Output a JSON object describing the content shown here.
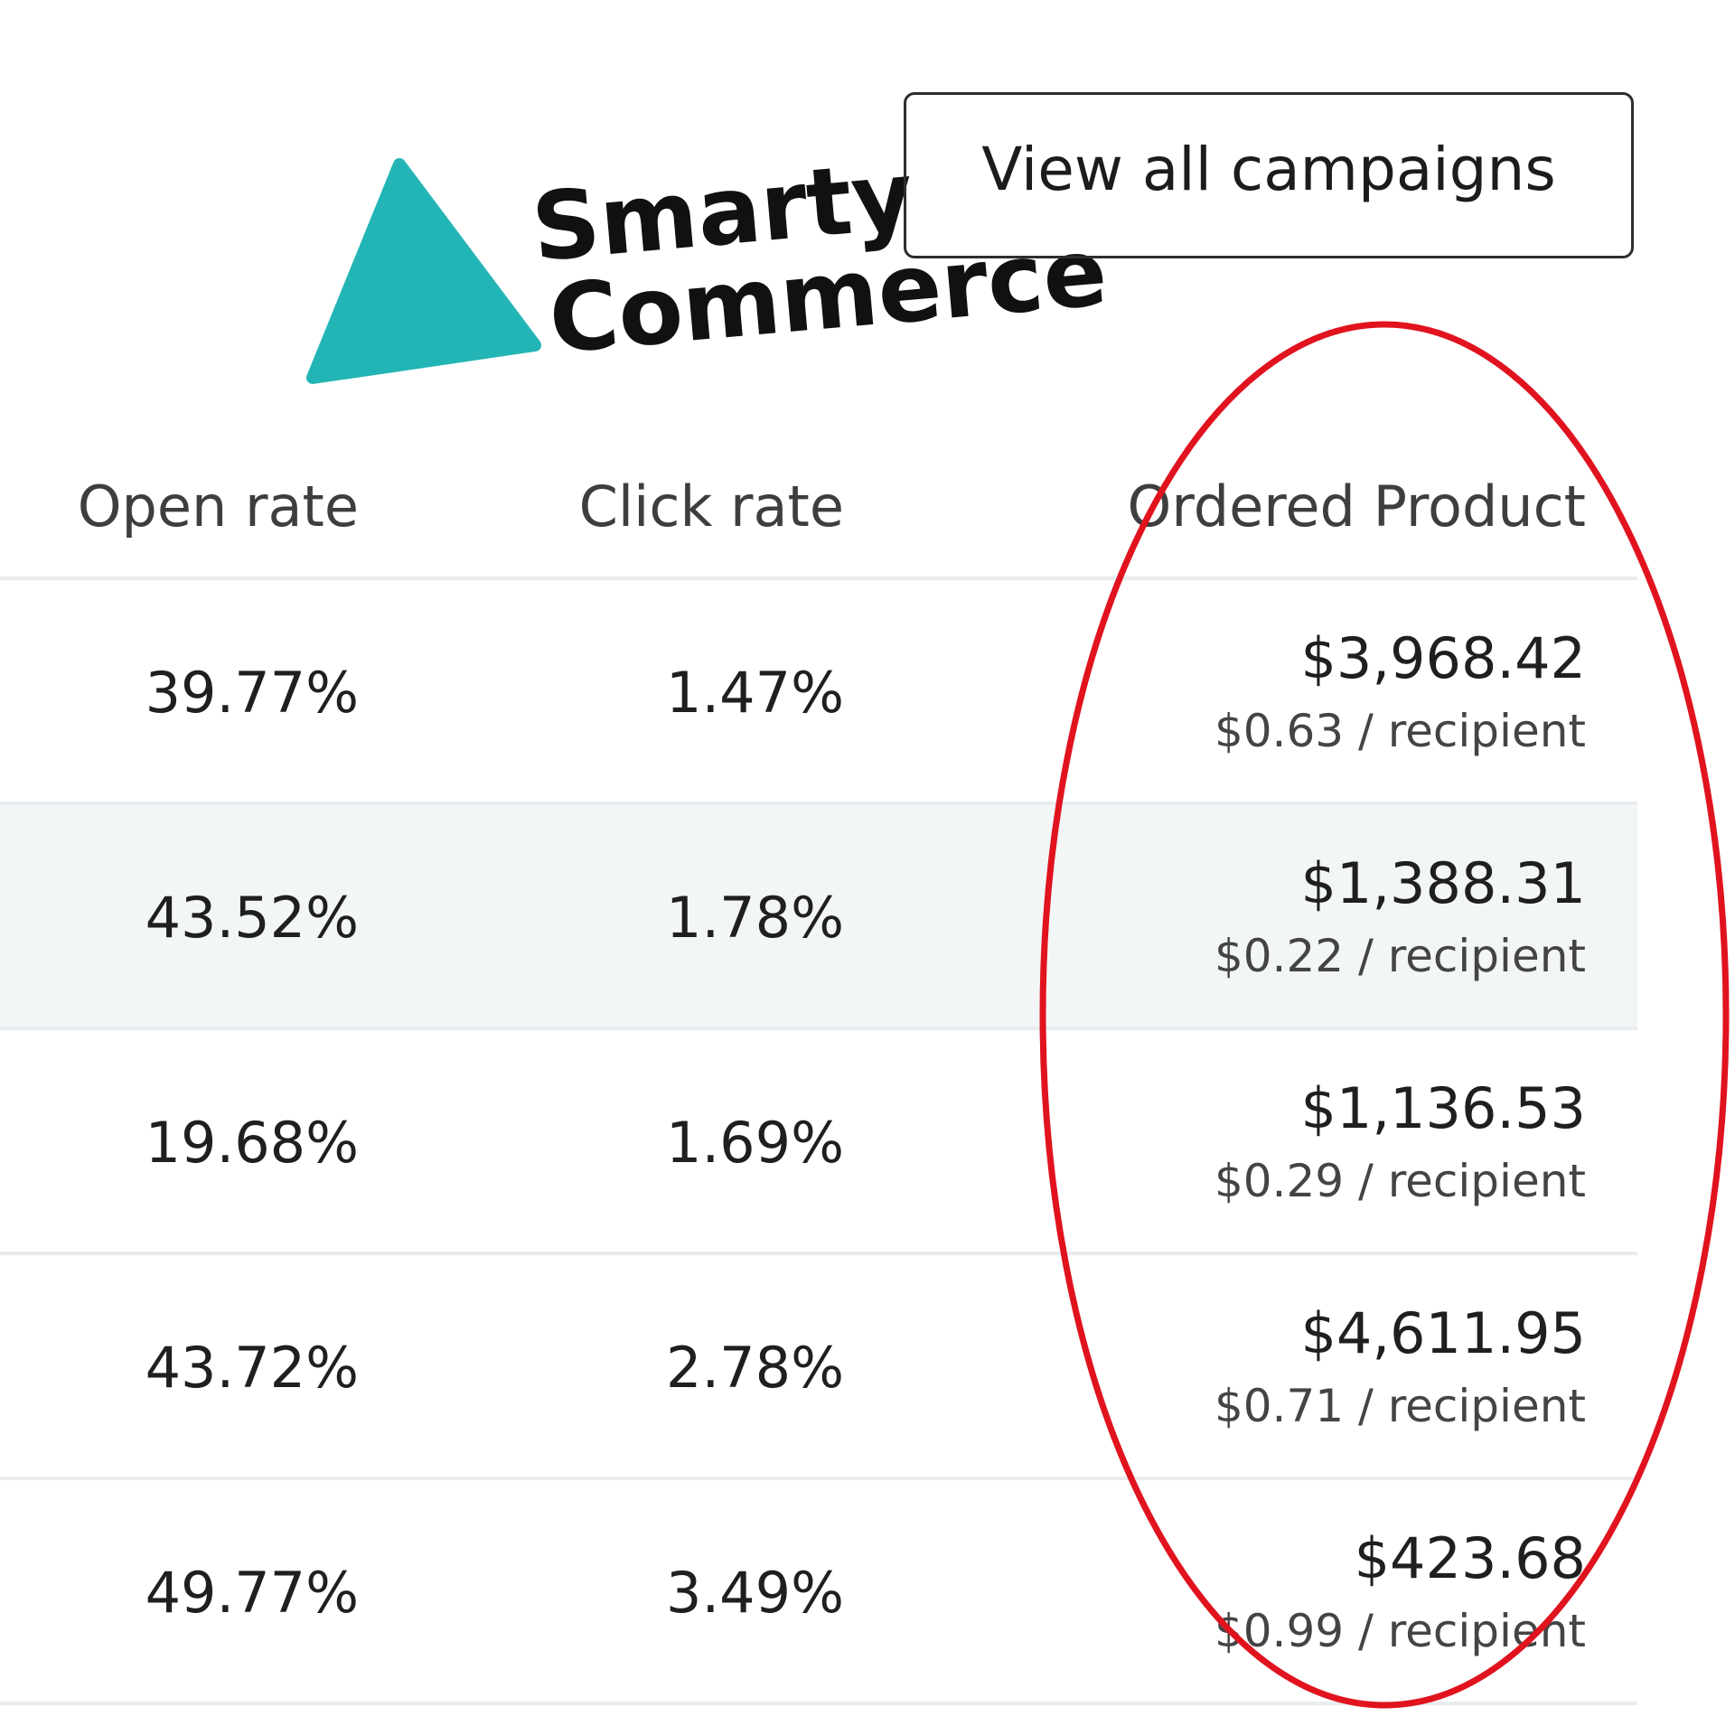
{
  "logo": {
    "line1": "Smarty",
    "line2": "Commerce",
    "triangle_color": "#23b5b5",
    "text_color": "#111111"
  },
  "button": {
    "label": "View all campaigns"
  },
  "table": {
    "headers": [
      "Open rate",
      "Click rate",
      "Ordered Product"
    ],
    "rows": [
      {
        "open_rate": "39.77%",
        "click_rate": "1.47%",
        "ordered_product": "$3,968.42",
        "per_recipient": "$0.63 / recipient"
      },
      {
        "open_rate": "43.52%",
        "click_rate": "1.78%",
        "ordered_product": "$1,388.31",
        "per_recipient": "$0.22 / recipient"
      },
      {
        "open_rate": "19.68%",
        "click_rate": "1.69%",
        "ordered_product": "$1,136.53",
        "per_recipient": "$0.29 / recipient"
      },
      {
        "open_rate": "43.72%",
        "click_rate": "2.78%",
        "ordered_product": "$4,611.95",
        "per_recipient": "$0.71 / recipient"
      },
      {
        "open_rate": "49.77%",
        "click_rate": "3.49%",
        "ordered_product": "$423.68",
        "per_recipient": "$0.99 / recipient"
      }
    ]
  },
  "annotation": {
    "color": "#e0131e"
  }
}
